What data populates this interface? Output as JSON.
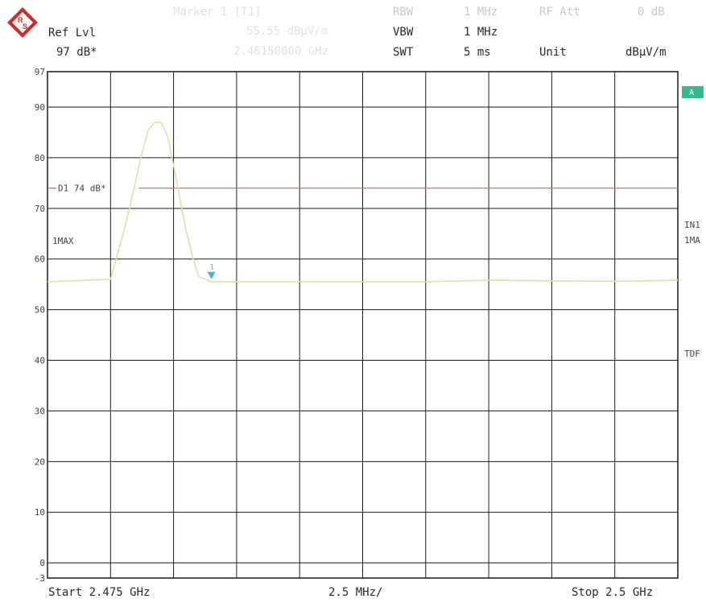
{
  "header": {
    "marker_title": "Marker 1 [T1]",
    "marker_level": "55.55 dBµV/m",
    "marker_freq": "2.48150000 GHz",
    "ref_lvl_label": "Ref Lvl",
    "ref_lvl_value": "97 dB*",
    "rbw_label": "RBW",
    "rbw_value": "1 MHz",
    "vbw_label": "VBW",
    "vbw_value": "1 MHz",
    "swt_label": "SWT",
    "swt_value": "5 ms",
    "rf_att_label": "RF Att",
    "rf_att_value": "0 dB",
    "unit_label": "Unit",
    "unit_value": "dBµV/m"
  },
  "side_labels": {
    "a_badge": "A",
    "in1": "IN1",
    "max_trace_right": "1MA",
    "tdf": "TDF"
  },
  "colors": {
    "grid": "#1a1a1a",
    "trace": "#e3e0a6",
    "display_line": "#b07070",
    "marker": "#45b0d6",
    "label_green": "#2e9e8e",
    "badge_bg": "#35b98f",
    "logo_red": "#c9302c"
  },
  "icons": {
    "logo": "rohde-schwarz-logo-icon",
    "marker": "marker-triangle-icon"
  },
  "footer": {
    "start": "Start 2.475 GHz",
    "span": "2.5 MHz/",
    "stop": "Stop 2.5 GHz"
  },
  "chart_data": {
    "type": "line",
    "title": "",
    "xlabel": "",
    "ylabel": "",
    "x_unit": "GHz",
    "xlim": [
      2.475,
      2.5
    ],
    "ylim": [
      -3,
      97
    ],
    "y_ticks": [
      "97",
      "90",
      "80",
      "70",
      "60",
      "50",
      "40",
      "30",
      "20",
      "10",
      "0",
      "-3"
    ],
    "grid": true,
    "series": [
      {
        "name": "1MAX",
        "x": [
          2.475,
          2.4775,
          2.47775,
          2.478,
          2.47825,
          2.4785,
          2.47875,
          2.479,
          2.47925,
          2.4795,
          2.47975,
          2.48,
          2.48025,
          2.4805,
          2.48075,
          2.481,
          2.4815,
          2.4825,
          2.485,
          2.4875,
          2.49,
          2.4925,
          2.495,
          2.4975,
          2.5
        ],
        "y": [
          55.5,
          56,
          60.5,
          65,
          70,
          75.5,
          81,
          85.5,
          87,
          87,
          84.5,
          78.5,
          72,
          65.5,
          60.5,
          56.5,
          55.5,
          55.5,
          55.5,
          55.5,
          55.5,
          55.8,
          55.7,
          55.6,
          55.8
        ]
      }
    ],
    "display_line": {
      "label": "D1 74 dB*",
      "value": 74
    },
    "marker": {
      "label": "1",
      "x": 2.4815,
      "y": 55.55
    }
  }
}
